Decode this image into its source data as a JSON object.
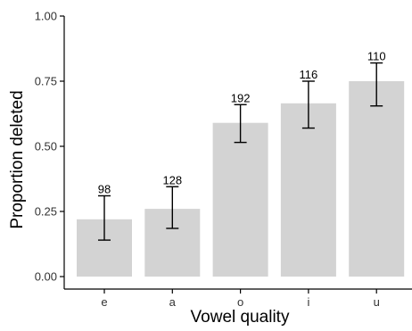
{
  "chart_data": {
    "type": "bar",
    "title": "",
    "xlabel": "Vowel quality",
    "ylabel": "Proportion deleted",
    "categories": [
      "e",
      "a",
      "o",
      "i",
      "u"
    ],
    "values": [
      0.22,
      0.26,
      0.59,
      0.665,
      0.75
    ],
    "error_low": [
      0.14,
      0.185,
      0.515,
      0.57,
      0.655
    ],
    "error_high": [
      0.31,
      0.345,
      0.66,
      0.75,
      0.82
    ],
    "data_labels": [
      "98",
      "128",
      "192",
      "116",
      "110"
    ],
    "ylim": [
      0,
      1
    ],
    "yticks": [
      0,
      0.25,
      0.5,
      0.75,
      1
    ],
    "ytick_labels": [
      "0.00",
      "0.25",
      "0.50",
      "0.75",
      "1.00"
    ],
    "grid": false,
    "legend": "none",
    "colors": {
      "bar": "#d3d3d3",
      "axis": "#000000",
      "text": "#000000",
      "tick_text": "#333333"
    }
  }
}
